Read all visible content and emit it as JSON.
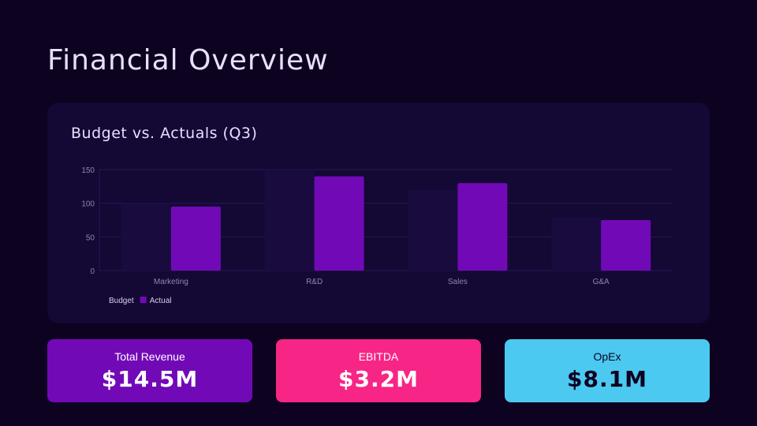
{
  "title": "Financial Overview",
  "colors": {
    "budget": "#190b3e",
    "actual": "#7209b7",
    "grid": "#2a1458",
    "axis_text": "#8f86b0"
  },
  "chart_data": {
    "type": "bar",
    "title": "Budget vs. Actuals (Q3)",
    "categories": [
      "Marketing",
      "R&D",
      "Sales",
      "G&A"
    ],
    "series": [
      {
        "name": "Budget",
        "values": [
          100,
          150,
          120,
          80
        ]
      },
      {
        "name": "Actual",
        "values": [
          95,
          140,
          130,
          75
        ]
      }
    ],
    "yticks": [
      0,
      50,
      100,
      150
    ],
    "ylim": [
      0,
      150
    ],
    "grid": true,
    "legend": "bottom-left",
    "xlabel": "",
    "ylabel": ""
  },
  "kpis": [
    {
      "label": "Total Revenue",
      "value": "$14.5M",
      "bg": "#7209b7",
      "fg": "#ffffff"
    },
    {
      "label": "EBITDA",
      "value": "$3.2M",
      "bg": "#f72585",
      "fg": "#ffffff"
    },
    {
      "label": "OpEx",
      "value": "$8.1M",
      "bg": "#4cc9f0",
      "fg": "#0d0220"
    }
  ]
}
